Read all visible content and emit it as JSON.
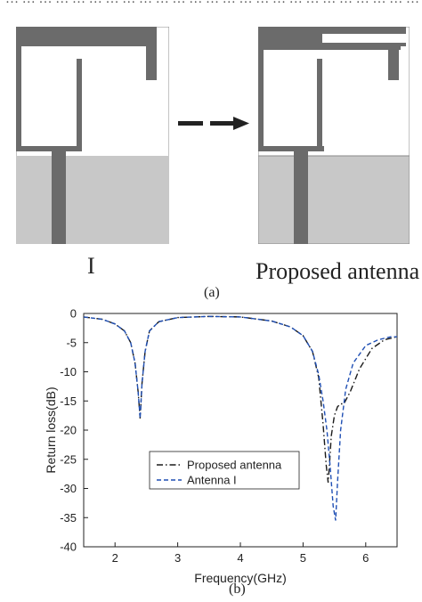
{
  "header_fragment": "… … … … … … … … … … … … … … … … … … … … … … … … … … … …",
  "figure_a": {
    "antenna_left_label": "I",
    "antenna_right_label": "Proposed antenna",
    "caption": "(a)"
  },
  "figure_b": {
    "caption": "(b)"
  },
  "colors": {
    "metal": "#6b6b6b",
    "ground": "#c8c8c8",
    "substrate": "#ffffff",
    "proposed_line": "#1a1a1a",
    "antenna_i_line": "#1f4fb4"
  },
  "chart_data": {
    "type": "line",
    "xlabel": "Frequency(GHz)",
    "ylabel": "Return loss(dB)",
    "xlim": [
      1.5,
      6.5
    ],
    "ylim": [
      -40,
      0
    ],
    "xticks": [
      2,
      3,
      4,
      5,
      6
    ],
    "yticks": [
      0,
      -5,
      -10,
      -15,
      -20,
      -25,
      -30,
      -35,
      -40
    ],
    "legend_position": "center-left",
    "grid": false,
    "series": [
      {
        "name": "Proposed antenna",
        "style": "dash-dot",
        "color": "#1a1a1a",
        "x": [
          1.5,
          1.8,
          2.0,
          2.15,
          2.25,
          2.32,
          2.37,
          2.4,
          2.43,
          2.48,
          2.55,
          2.7,
          3.0,
          3.5,
          4.0,
          4.5,
          4.8,
          5.0,
          5.15,
          5.25,
          5.32,
          5.37,
          5.4,
          5.42,
          5.45,
          5.5,
          5.55,
          5.6,
          5.65,
          5.75,
          5.9,
          6.1,
          6.3,
          6.5
        ],
        "y": [
          -0.6,
          -1.0,
          -1.8,
          -3.0,
          -5.0,
          -8.5,
          -13.5,
          -18.0,
          -12.0,
          -6.5,
          -3.0,
          -1.4,
          -0.7,
          -0.5,
          -0.6,
          -1.3,
          -2.3,
          -3.8,
          -6.5,
          -11.0,
          -19.0,
          -26.0,
          -29.0,
          -26.0,
          -21.0,
          -17.5,
          -16.0,
          -15.5,
          -15.5,
          -13.5,
          -9.5,
          -6.0,
          -4.5,
          -4.0
        ]
      },
      {
        "name": "Antenna I",
        "style": "dash",
        "color": "#1f4fb4",
        "x": [
          1.5,
          1.8,
          2.0,
          2.15,
          2.25,
          2.32,
          2.37,
          2.4,
          2.43,
          2.48,
          2.55,
          2.7,
          3.0,
          3.5,
          4.0,
          4.5,
          4.8,
          5.0,
          5.15,
          5.25,
          5.32,
          5.38,
          5.43,
          5.48,
          5.52,
          5.55,
          5.6,
          5.68,
          5.8,
          6.0,
          6.2,
          6.4,
          6.5
        ],
        "y": [
          -0.6,
          -1.0,
          -1.8,
          -3.0,
          -5.0,
          -8.5,
          -13.5,
          -18.0,
          -12.0,
          -6.5,
          -3.0,
          -1.4,
          -0.7,
          -0.5,
          -0.6,
          -1.3,
          -2.3,
          -3.8,
          -6.5,
          -10.5,
          -15.0,
          -20.0,
          -26.0,
          -33.0,
          -35.5,
          -29.0,
          -20.0,
          -13.0,
          -8.5,
          -5.5,
          -4.5,
          -4.0,
          -4.0
        ]
      }
    ]
  }
}
